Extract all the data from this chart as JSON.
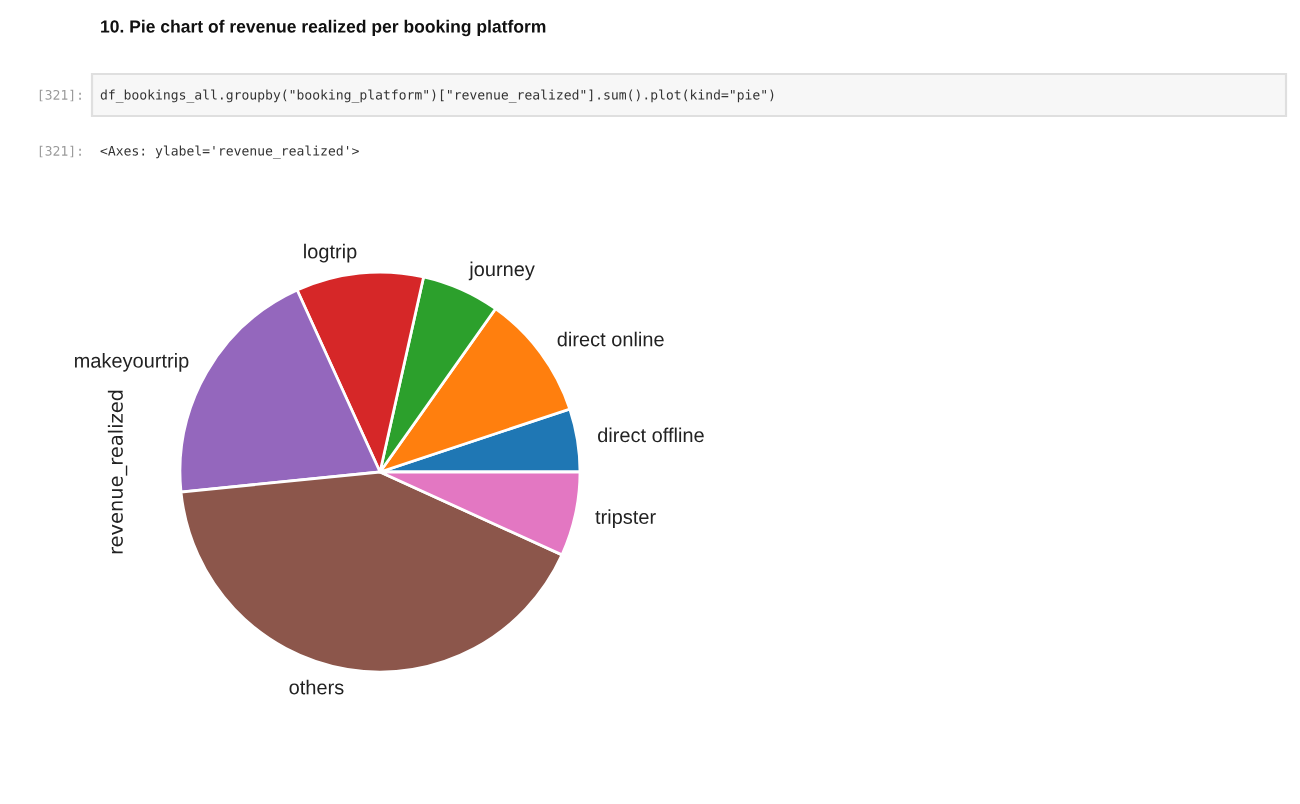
{
  "chart_data": {
    "type": "pie",
    "title": "10. Pie chart of revenue realized per booking platform",
    "ylabel": "revenue_realized",
    "categories": [
      "direct offline",
      "direct online",
      "journey",
      "logtrip",
      "makeyourtrip",
      "others",
      "tripster"
    ],
    "values": [
      5.1,
      10.1,
      6.3,
      10.3,
      19.8,
      41.6,
      6.8
    ],
    "colors": [
      "#1f77b4",
      "#ff7f0e",
      "#2ca02c",
      "#d62728",
      "#9467bd",
      "#8c564b",
      "#e377c2"
    ],
    "annotations": [
      "[321]:",
      "df_bookings_all.groupby(\"booking_platform\")[\"revenue_realized\"].sum().plot(kind=\"pie\")",
      "[321]:",
      "<Axes: ylabel='revenue_realized'>"
    ]
  }
}
